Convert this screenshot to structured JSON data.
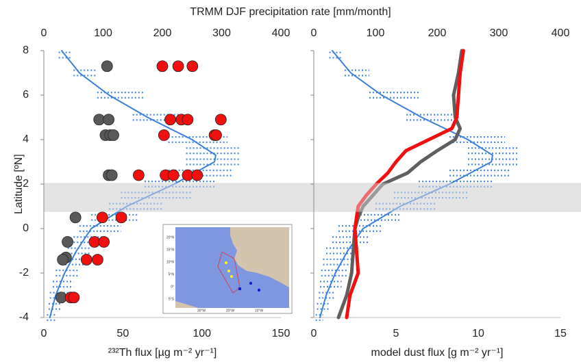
{
  "chart_data": [
    {
      "type": "scatter",
      "x2label": "TRMM DJF precipitation rate [mm/month]",
      "ylabel": "Latitude [ºN]",
      "xlabel": "²³²Th flux [µg m⁻² yr⁻¹]",
      "xlim": [
        0,
        150
      ],
      "xticks": [
        0,
        50,
        100,
        150
      ],
      "x2lim": [
        0,
        400
      ],
      "x2ticks": [
        0,
        100,
        200,
        300,
        400
      ],
      "ylim": [
        -4,
        8
      ],
      "yticks": [
        8,
        6,
        4,
        2,
        0,
        -2,
        -4
      ],
      "ytick_labels": true,
      "band": [
        0.75,
        2.05
      ],
      "series": [
        {
          "kind": "spread",
          "axis": "x2",
          "color": "#4a8be6",
          "y": [
            7.8,
            7,
            6,
            5,
            4,
            3.5,
            3,
            2.5,
            2,
            1.5,
            1,
            0.5,
            0,
            -0.5,
            -1,
            -1.5,
            -2,
            -2.5,
            -3,
            -3.5,
            -4
          ],
          "lo": [
            25,
            50,
            90,
            150,
            210,
            240,
            240,
            210,
            170,
            130,
            110,
            80,
            60,
            50,
            40,
            30,
            20,
            15,
            10,
            8,
            5
          ],
          "hi": [
            45,
            90,
            170,
            230,
            310,
            330,
            330,
            320,
            290,
            250,
            200,
            160,
            130,
            100,
            80,
            70,
            60,
            50,
            40,
            30,
            20
          ]
        },
        {
          "kind": "curve",
          "axis": "x2",
          "color": "#3a7fdc",
          "y": [
            8,
            7,
            6,
            5,
            4,
            3.3,
            3,
            2,
            1,
            0,
            -1,
            -2,
            -3,
            -4
          ],
          "x": [
            30,
            60,
            110,
            175,
            250,
            290,
            288,
            220,
            140,
            80,
            55,
            35,
            20,
            10
          ]
        },
        {
          "kind": "points",
          "color": "#595959",
          "x": [
            40,
            35,
            41,
            39,
            42,
            44,
            41,
            43,
            20,
            15,
            14,
            12,
            11
          ],
          "y": [
            7.3,
            4.9,
            4.9,
            4.2,
            4.2,
            4.2,
            2.4,
            2.4,
            0.5,
            -0.6,
            -1.3,
            -1.4,
            -3.1
          ]
        },
        {
          "kind": "points",
          "color": "#f01010",
          "x": [
            75,
            85,
            94,
            80,
            87,
            91,
            112,
            76,
            108,
            109,
            60,
            77,
            82,
            91,
            97,
            37,
            49,
            32,
            38,
            27,
            34,
            17,
            19
          ],
          "y": [
            7.3,
            7.3,
            7.3,
            4.9,
            4.9,
            4.9,
            4.9,
            4.2,
            4.2,
            4.2,
            2.4,
            2.4,
            2.4,
            2.4,
            2.4,
            0.5,
            0.5,
            -0.6,
            -0.6,
            -1.4,
            -1.4,
            -3.1,
            -3.1
          ]
        }
      ]
    },
    {
      "type": "line",
      "xlabel": "model dust flux [g m⁻² yr⁻¹]",
      "xlim": [
        0,
        15
      ],
      "xticks": [
        0,
        5,
        10,
        15
      ],
      "x2lim": [
        0,
        400
      ],
      "x2ticks": [
        0,
        100,
        200,
        300,
        400
      ],
      "ylim": [
        -4,
        8
      ],
      "yticks": [
        8,
        6,
        4,
        2,
        0,
        -2,
        -4
      ],
      "ytick_labels": false,
      "band": [
        0.75,
        2.05
      ],
      "series": [
        {
          "kind": "spread",
          "axis": "x2",
          "color": "#4a8be6",
          "y": [
            7.8,
            7,
            6,
            5,
            4,
            3.5,
            3,
            2.5,
            2,
            1.5,
            1,
            0.5,
            0,
            -0.5,
            -1,
            -1.5,
            -2,
            -2.5,
            -3,
            -3.5,
            -4
          ],
          "lo": [
            25,
            50,
            90,
            150,
            220,
            250,
            250,
            220,
            170,
            130,
            100,
            70,
            40,
            30,
            20,
            15,
            12,
            10,
            8,
            5,
            3
          ],
          "hi": [
            45,
            90,
            170,
            230,
            310,
            330,
            330,
            320,
            290,
            250,
            200,
            140,
            110,
            90,
            75,
            65,
            55,
            45,
            35,
            25,
            15
          ]
        },
        {
          "kind": "curve",
          "axis": "x2",
          "color": "#3a7fdc",
          "y": [
            8,
            7,
            6,
            5,
            4,
            3.3,
            3,
            2,
            1,
            0,
            -1,
            -2,
            -3,
            -4
          ],
          "x": [
            30,
            60,
            110,
            175,
            250,
            290,
            288,
            220,
            140,
            80,
            55,
            35,
            20,
            10
          ]
        },
        {
          "kind": "thick",
          "color": "#5f5f5f",
          "y": [
            8,
            7,
            6,
            5,
            4.5,
            4,
            3.5,
            3,
            2.5,
            2,
            1.5,
            1,
            0.5,
            0,
            -1,
            -2,
            -3,
            -4
          ],
          "x": [
            9.0,
            8.8,
            8.5,
            8.6,
            8.9,
            8.6,
            7.5,
            6.5,
            5.7,
            4.2,
            3.6,
            3.0,
            2.7,
            2.5,
            2.4,
            2.3,
            2.0,
            1.5
          ]
        },
        {
          "kind": "thick",
          "color": "#f01010",
          "y": [
            8,
            7,
            6,
            5,
            4.5,
            4,
            3.5,
            3,
            2.5,
            2,
            1.5,
            1,
            0.5,
            0,
            -1,
            -2,
            -3,
            -4
          ],
          "x": [
            9.1,
            8.9,
            8.8,
            8.7,
            8.4,
            7.0,
            5.6,
            5.0,
            4.5,
            3.8,
            3.2,
            2.7,
            2.6,
            2.5,
            2.6,
            2.7,
            2.2,
            2.0
          ]
        }
      ]
    }
  ],
  "inset": {
    "lat_labels": [
      "20°N",
      "15°N",
      "10°N",
      "5°N",
      "0°",
      "5°S"
    ],
    "lon_labels": [
      "30°W",
      "20°W",
      "10°W"
    ]
  }
}
